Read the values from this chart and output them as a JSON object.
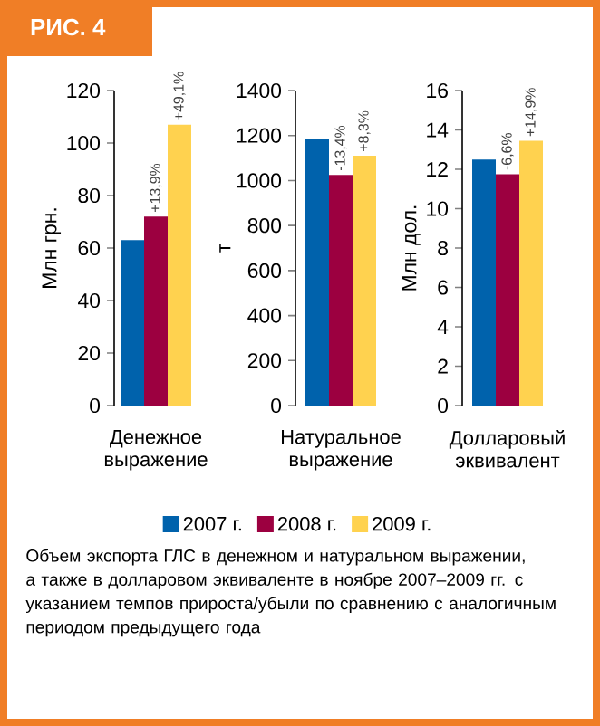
{
  "chart_data": [
    {
      "type": "bar",
      "title": "РИС. 4",
      "ylabel": "Млн грн.",
      "categories": [
        "Денежное выражение"
      ],
      "ylim": [
        0,
        120
      ],
      "yticks": [
        0,
        20,
        40,
        60,
        80,
        100,
        120
      ],
      "legend": "bottom",
      "annotations": [
        "Объем экспорта ГЛС в денежном и натуральном выражении, а также в долларовом эквиваленте в ноябре 2007–2009 гг. с указанием темпов прироста/убыли по сравнению с аналогичным периодом предыдущего года",
        {
          "text": "+13,9%",
          "x": "Денежное выражение",
          "y": 72
        },
        "+49,1%"
      ],
      "series": [
        {
          "name": "2007 г.",
          "color": "#0062ac",
          "values": [
            63
          ]
        },
        {
          "name": "2008 г.",
          "color": "#9c0040",
          "values": [
            72
          ]
        },
        {
          "name": "2009 г.",
          "color": "#ffd24f",
          "values": [
            107
          ]
        }
      ]
    },
    {
      "type": "bar",
      "ylabel": "т",
      "categories": [
        "Натуральное выражение"
      ],
      "ylim": [
        0,
        1400
      ],
      "yticks": [
        0,
        200,
        400,
        600,
        800,
        1000,
        1200,
        1400
      ],
      "annotations": [
        {
          "text": "-13,4%",
          "x": "Натуральное выражение",
          "y": 1025
        },
        "+8,3%"
      ],
      "series": [
        {
          "color": "#0062ac",
          "values": [
            1185
          ]
        },
        {
          "color": "#9c0040",
          "values": [
            1025
          ]
        },
        {
          "color": "#ffd24f",
          "values": [
            1110
          ]
        }
      ]
    },
    {
      "type": "bar",
      "ylabel": "Млн дол.",
      "categories": [
        "Долларовый эквивалент"
      ],
      "ylim": [
        0,
        16
      ],
      "yticks": [
        0,
        2,
        4,
        6,
        8,
        10,
        12,
        14,
        16
      ],
      "annotations": [
        {
          "text": "-6,6%",
          "x": "Долларовый эквивалент",
          "y": 11.75
        },
        "+14,9%"
      ],
      "series": [
        {
          "color": "#0062ac",
          "values": [
            12.5
          ]
        },
        {
          "color": "#9c0040",
          "values": [
            11.75
          ]
        },
        {
          "color": "#ffd24f",
          "values": [
            13.45
          ]
        }
      ]
    }
  ]
}
